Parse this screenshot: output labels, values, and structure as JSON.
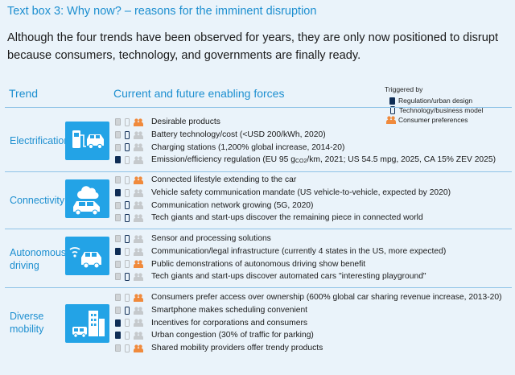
{
  "title": "Text box 3: Why now? – reasons for the imminent disruption",
  "intro": "Although the four trends have been observed for years, they are only now positioned to disrupt because consumers, technology, and governments are finally ready.",
  "headers": {
    "trend": "Trend",
    "forces": "Current and future enabling forces"
  },
  "legend": {
    "title": "Triggered by",
    "items": [
      {
        "icon": "regulation-icon",
        "label": "Regulation/urban design"
      },
      {
        "icon": "technology-icon",
        "label": "Technology/business model"
      },
      {
        "icon": "consumer-icon",
        "label": "Consumer preferences"
      }
    ]
  },
  "colors": {
    "accent": "#1d8fd0",
    "active": "#0f2d55",
    "consumer_active": "#f08a3c",
    "inactive": "#c5c9cc",
    "background": "#eaf3fa"
  },
  "trends": [
    {
      "name": "Electrification",
      "icon": "ev-charging-icon",
      "forces": [
        {
          "text": "Desirable products",
          "reg": false,
          "tech": false,
          "cons": true
        },
        {
          "text": "Battery technology/cost (<USD 200/kWh, 2020)",
          "reg": false,
          "tech": true,
          "cons": false
        },
        {
          "text": "Charging stations (1,200% global increase, 2014-20)",
          "reg": false,
          "tech": true,
          "cons": false
        },
        {
          "text_pre": "Emission/efficiency regulation (EU 95 g",
          "text_sub": "CO2",
          "text_post": "/km, 2021; US 54.5 mpg, 2025, CA 15% ZEV 2025)",
          "reg": true,
          "tech": false,
          "cons": false
        }
      ]
    },
    {
      "name": "Connectivity",
      "icon": "connected-car-icon",
      "forces": [
        {
          "text": "Connected lifestyle extending to the car",
          "reg": false,
          "tech": false,
          "cons": true
        },
        {
          "text": "Vehicle safety communication mandate (US vehicle-to-vehicle, expected by 2020)",
          "reg": true,
          "tech": false,
          "cons": false
        },
        {
          "text": "Communication network growing (5G, 2020)",
          "reg": false,
          "tech": true,
          "cons": false
        },
        {
          "text": "Tech giants and start-ups discover the remaining piece in connected world",
          "reg": false,
          "tech": true,
          "cons": false
        }
      ]
    },
    {
      "name": "Autonomous driving",
      "name_line1": "Autonomous",
      "name_line2": "driving",
      "icon": "autonomous-car-icon",
      "forces": [
        {
          "text": "Sensor and processing solutions",
          "reg": false,
          "tech": true,
          "cons": false
        },
        {
          "text": "Communication/legal infrastructure (currently 4 states in the US, more expected)",
          "reg": true,
          "tech": false,
          "cons": false
        },
        {
          "text": "Public demonstrations of autonomous driving show benefit",
          "reg": false,
          "tech": false,
          "cons": true
        },
        {
          "text": "Tech giants and start-ups discover automated cars \"interesting playground\"",
          "reg": false,
          "tech": true,
          "cons": false
        }
      ]
    },
    {
      "name": "Diverse mobility",
      "name_line1": "Diverse",
      "name_line2": "mobility",
      "icon": "city-mobility-icon",
      "forces": [
        {
          "text": "Consumers prefer access over ownership (600% global car sharing revenue increase, 2013-20)",
          "reg": false,
          "tech": false,
          "cons": true
        },
        {
          "text": "Smartphone makes scheduling convenient",
          "reg": false,
          "tech": true,
          "cons": false
        },
        {
          "text": "Incentives for corporations and consumers",
          "reg": true,
          "tech": false,
          "cons": false
        },
        {
          "text": "Urban congestion (30% of traffic for parking)",
          "reg": true,
          "tech": false,
          "cons": false
        },
        {
          "text": "Shared mobility providers offer trendy products",
          "reg": false,
          "tech": false,
          "cons": true
        }
      ]
    }
  ]
}
